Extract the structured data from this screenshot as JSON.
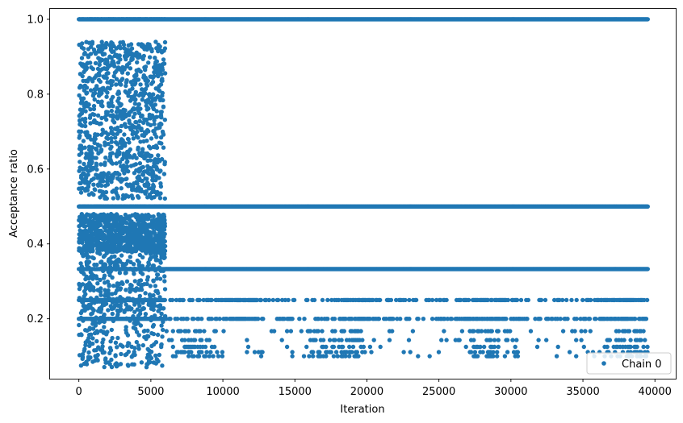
{
  "chart_data": {
    "type": "scatter",
    "xlabel": "Iteration",
    "ylabel": "Acceptance ratio",
    "xlim": [
      -2000,
      41500
    ],
    "ylim": [
      0.04,
      1.03
    ],
    "x_ticks": [
      0,
      5000,
      10000,
      15000,
      20000,
      25000,
      30000,
      35000,
      40000
    ],
    "y_ticks": [
      0.2,
      0.4,
      0.6,
      0.8,
      1.0
    ],
    "y_tick_labels": [
      "0.2",
      "0.4",
      "0.6",
      "0.8",
      "1.0"
    ],
    "grid": false,
    "legend_position": "lower-right",
    "series": [
      {
        "name": "Chain 0",
        "color": "#1f77b4",
        "marker": "circle",
        "x_range": [
          0,
          39500
        ],
        "bands": [
          {
            "y": 1.0,
            "x_start": 0,
            "x_end": 39500,
            "coverage": "dense"
          },
          {
            "y": 0.5,
            "x_start": 0,
            "x_end": 39500,
            "coverage": "dense"
          },
          {
            "y": 0.333,
            "x_start": 0,
            "x_end": 39500,
            "coverage": "mostly-dense"
          },
          {
            "y": 0.25,
            "x_start": 0,
            "x_end": 39500,
            "coverage": "intermittent"
          },
          {
            "y": 0.2,
            "x_start": 0,
            "x_end": 39500,
            "coverage": "intermittent"
          },
          {
            "y": 0.167,
            "x_start": 6000,
            "x_end": 39500,
            "coverage": "sparse"
          },
          {
            "y": 0.143,
            "x_start": 6000,
            "x_end": 39500,
            "coverage": "sparse"
          },
          {
            "y": 0.125,
            "x_start": 6000,
            "x_end": 39500,
            "coverage": "sparse"
          },
          {
            "y": 0.111,
            "x_start": 6000,
            "x_end": 39500,
            "coverage": "sparse"
          },
          {
            "y": 0.1,
            "x_start": 6000,
            "x_end": 39500,
            "coverage": "sparse"
          }
        ],
        "burn_in": {
          "x_start": 0,
          "x_end": 6000,
          "y_min": 0.07,
          "y_max": 0.94,
          "note": "noisy spread"
        }
      }
    ]
  }
}
